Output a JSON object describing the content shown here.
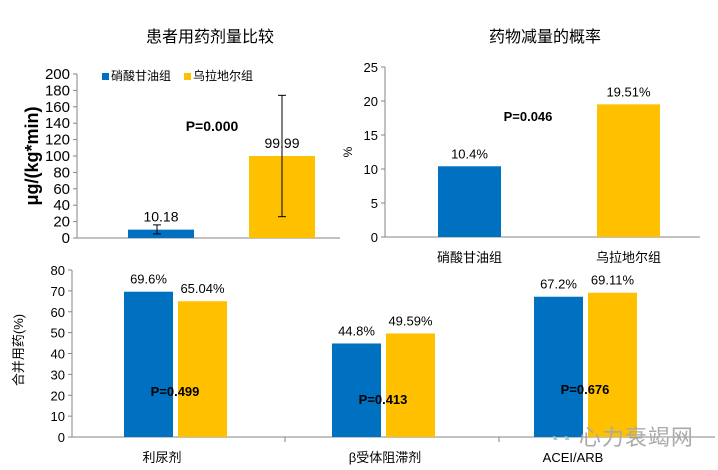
{
  "colors": {
    "blue": "#0070C0",
    "yellow": "#FFC000",
    "axis": "#868686"
  },
  "watermark": "心力衰竭网",
  "chart_data": [
    {
      "type": "bar",
      "title": "患者用药剂量比较",
      "ylabel": "μg/(kg*min)",
      "ylim": [
        0,
        200
      ],
      "yticks": [
        0,
        20,
        40,
        60,
        80,
        100,
        120,
        140,
        160,
        180,
        200
      ],
      "legend": [
        "硝酸甘油组",
        "乌拉地尔组"
      ],
      "legend_placement": "top",
      "categories": [
        "硝酸甘油组",
        "乌拉地尔组"
      ],
      "values": [
        10.18,
        99.99
      ],
      "labels": [
        "10.18",
        "99.99"
      ],
      "error_bars": [
        [
          5,
          16
        ],
        [
          26,
          174
        ]
      ],
      "annotation": "P=0.000"
    },
    {
      "type": "bar",
      "title": "药物减量的概率",
      "ylabel": "%",
      "ylim": [
        0,
        25
      ],
      "yticks": [
        0,
        5,
        10,
        15,
        20,
        25
      ],
      "categories": [
        "硝酸甘油组",
        "乌拉地尔组"
      ],
      "values": [
        10.4,
        19.51
      ],
      "labels": [
        "10.4%",
        "19.51%"
      ],
      "annotation": "P=0.046"
    },
    {
      "type": "bar",
      "ylabel": "合并用药(%)",
      "ylim": [
        0,
        80
      ],
      "yticks": [
        0,
        10,
        20,
        30,
        40,
        50,
        60,
        70,
        80
      ],
      "categories": [
        "利尿剂",
        "β受体阻滞剂",
        "ACEI/ARB"
      ],
      "series": [
        {
          "name": "硝酸甘油组",
          "values": [
            69.6,
            44.8,
            67.2
          ],
          "labels": [
            "69.6%",
            "44.8%",
            "67.2%"
          ]
        },
        {
          "name": "乌拉地尔组",
          "values": [
            65.04,
            49.59,
            69.11
          ],
          "labels": [
            "65.04%",
            "49.59%",
            "69.11%"
          ]
        }
      ],
      "annotations": [
        "P=0.499",
        "P=0.413",
        "P=0.676"
      ]
    }
  ]
}
